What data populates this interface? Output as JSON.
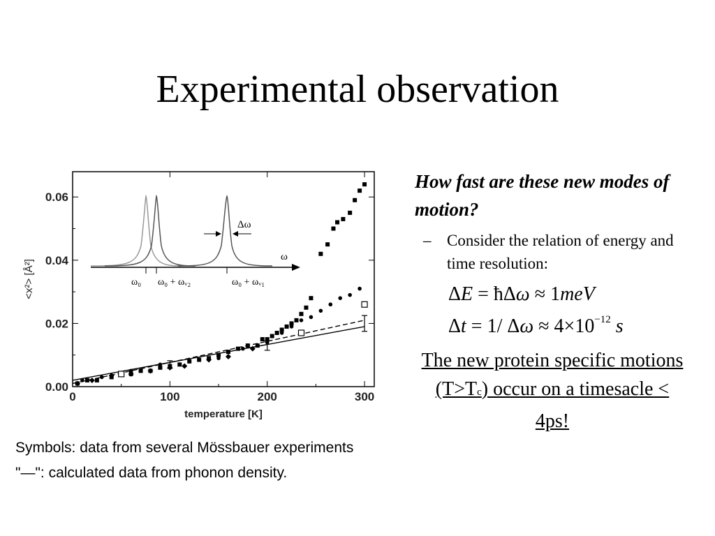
{
  "title": "Experimental observation",
  "chart_data": {
    "type": "scatter",
    "xlabel": "temperature [K]",
    "ylabel": "<x²> [Å²]",
    "xlim": [
      0,
      310
    ],
    "ylim": [
      0,
      0.068
    ],
    "xticks": [
      "0",
      "100",
      "200",
      "300"
    ],
    "yticks": [
      "0.00",
      "0.02",
      "0.04",
      "0.06"
    ],
    "grid": false,
    "series": [
      {
        "marker": "square-filled",
        "x": [
          5,
          15,
          25,
          40,
          50,
          60,
          70,
          80,
          90,
          100,
          110,
          120,
          130,
          140,
          150,
          160,
          170,
          180,
          190,
          195,
          200,
          205,
          210,
          215,
          220,
          225,
          230,
          235,
          240,
          245,
          255,
          262,
          268,
          272,
          278,
          285,
          290,
          295,
          300
        ],
        "values": [
          0.001,
          0.002,
          0.002,
          0.003,
          0.004,
          0.004,
          0.005,
          0.005,
          0.006,
          0.0065,
          0.007,
          0.008,
          0.0085,
          0.009,
          0.01,
          0.011,
          0.012,
          0.013,
          0.013,
          0.015,
          0.015,
          0.016,
          0.017,
          0.018,
          0.019,
          0.02,
          0.021,
          0.023,
          0.025,
          0.028,
          0.042,
          0.045,
          0.05,
          0.052,
          0.053,
          0.055,
          0.059,
          0.062,
          0.064
        ]
      },
      {
        "marker": "circle-filled",
        "x": [
          10,
          30,
          60,
          90,
          120,
          150,
          175,
          200,
          215,
          225,
          235,
          245,
          255,
          265,
          275,
          285,
          295
        ],
        "values": [
          0.002,
          0.003,
          0.005,
          0.007,
          0.008,
          0.009,
          0.012,
          0.014,
          0.017,
          0.019,
          0.021,
          0.022,
          0.024,
          0.026,
          0.028,
          0.029,
          0.031
        ]
      },
      {
        "marker": "diamond-filled",
        "x": [
          5,
          20,
          40,
          60,
          80,
          100,
          115,
          140,
          160,
          185
        ],
        "values": [
          0.001,
          0.002,
          0.0035,
          0.004,
          0.005,
          0.006,
          0.0065,
          0.0085,
          0.0095,
          0.012
        ]
      },
      {
        "marker": "square-open",
        "x": [
          50,
          235,
          300
        ],
        "values": [
          0.004,
          0.017,
          0.026
        ]
      }
    ],
    "lines": [
      {
        "style": "solid",
        "x": [
          0,
          300
        ],
        "values": [
          0.002,
          0.019
        ]
      },
      {
        "style": "dashed",
        "x": [
          0,
          300
        ],
        "values": [
          0.001,
          0.021
        ]
      }
    ],
    "error_bars": [
      {
        "x": 100,
        "y": 0.007,
        "err": 0.0012
      },
      {
        "x": 200,
        "y": 0.013,
        "err": 0.0015
      },
      {
        "x": 300,
        "y": 0.02,
        "err": 0.0025
      }
    ],
    "inset": {
      "type": "line",
      "peaks": [
        "ω₀",
        "ω₀ + ωᵥ₂",
        "ω₀ + ωᵥ₁"
      ],
      "axis_label": "ω",
      "width_label": "Δω"
    }
  },
  "question": "How fast  are these new modes of motion?",
  "bullet_dash": "–",
  "bullet_text": "Consider the relation of energy and time resolution:",
  "formula1": {
    "a": "Δ",
    "b": "E",
    "c": " = ħΔ",
    "d": "ω",
    "e": " ≈ 1",
    "f": "meV"
  },
  "formula2": {
    "a": "Δ",
    "b": "t",
    "c": " = 1/ Δ",
    "d": "ω",
    "e": " ≈ 4×10",
    "exp": "−12",
    "f": " s"
  },
  "conclusion": {
    "part1": "The new protein specific motions (T>T",
    "sub": "c",
    "part2": ") occur on a timesacle < 4ps!"
  },
  "caption1": "Symbols: data from several Mössbauer experiments",
  "caption2": "\"—\": calculated data from phonon density."
}
